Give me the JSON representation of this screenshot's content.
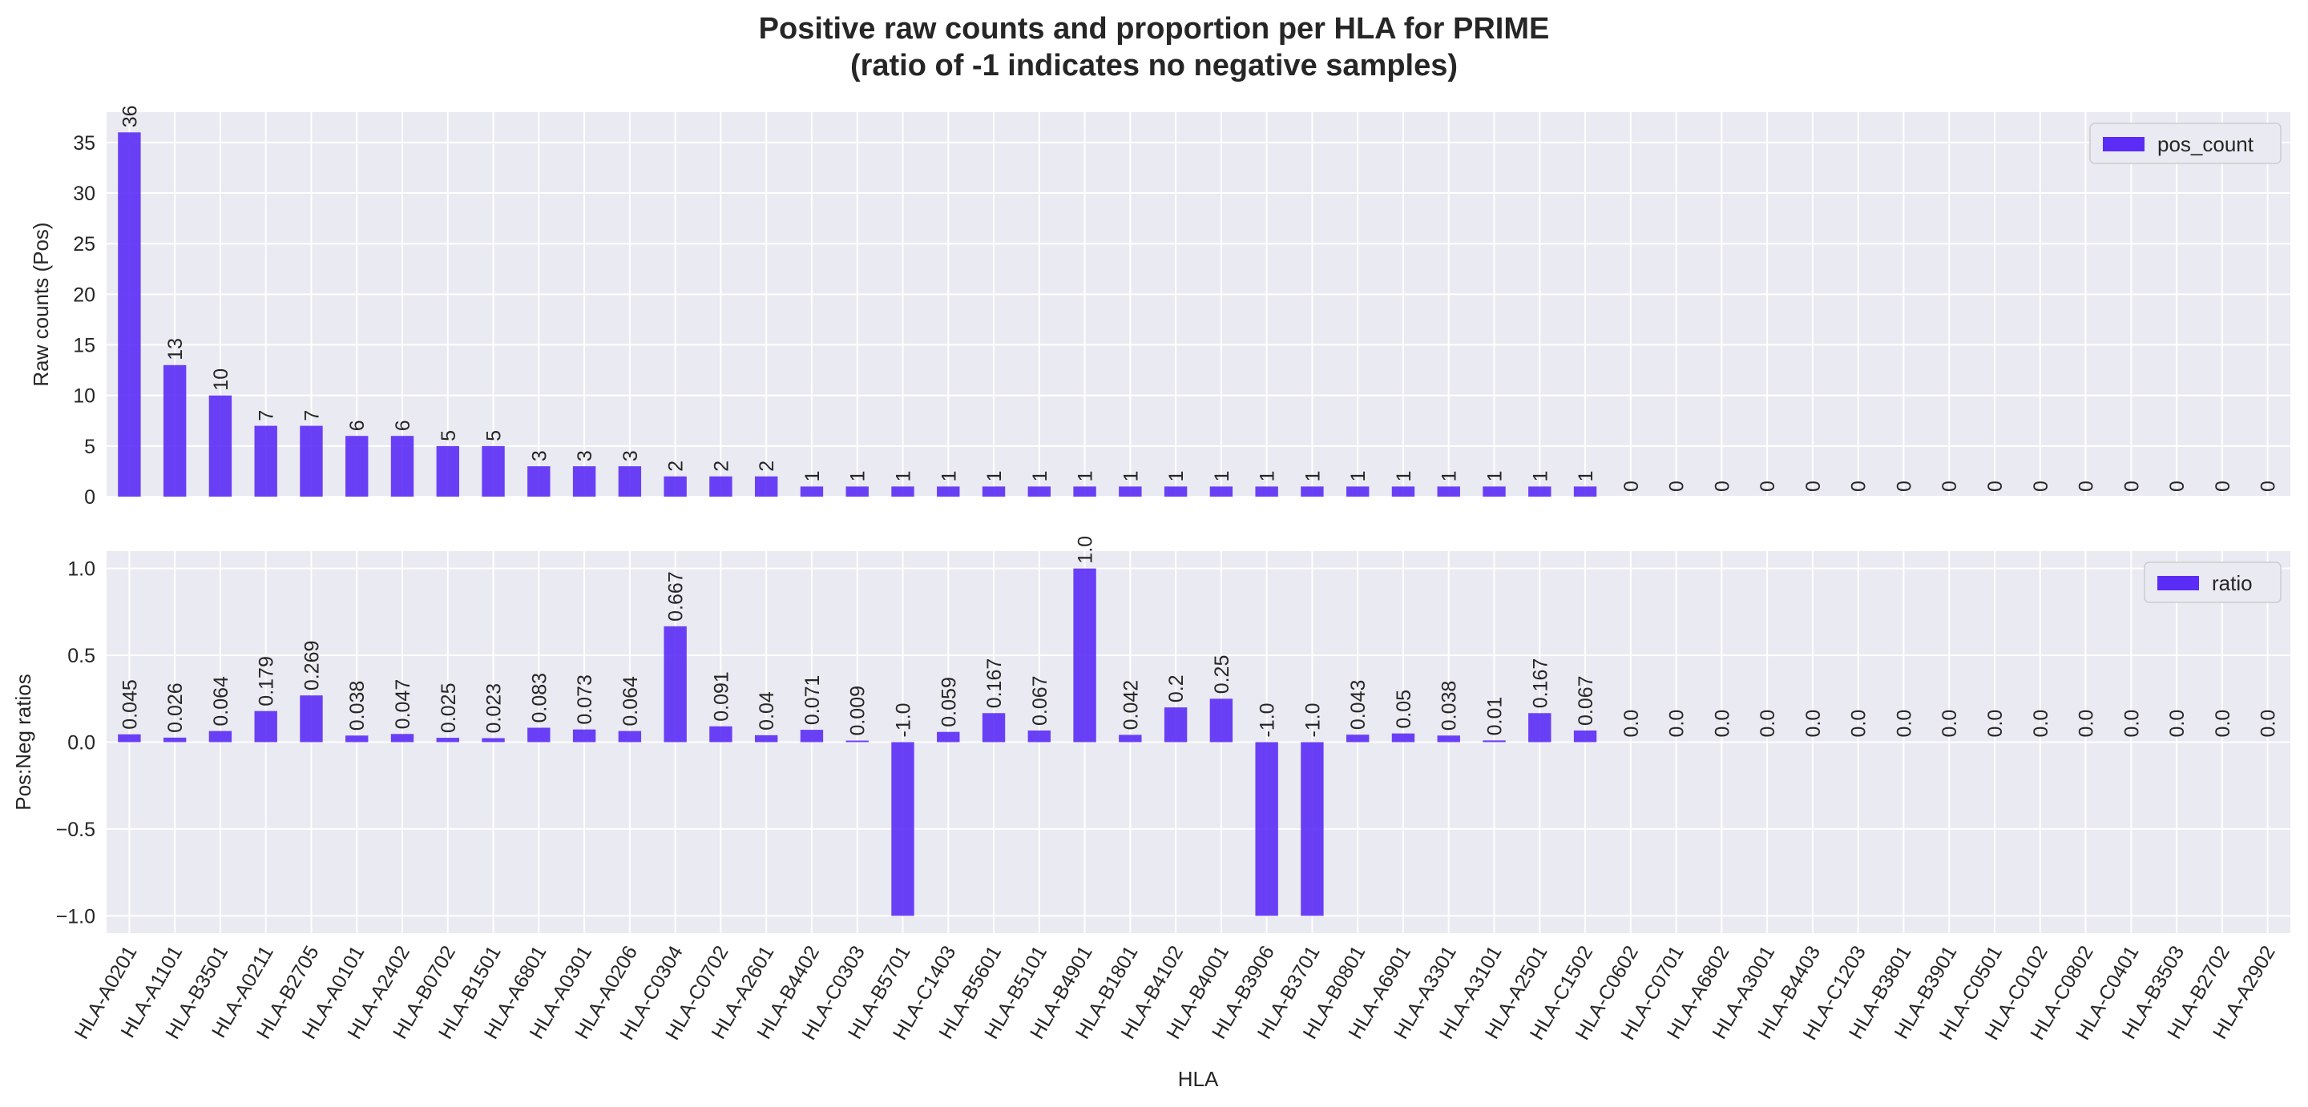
{
  "title_line1": "Positive raw counts and proportion per HLA for PRIME",
  "title_line2": "(ratio of -1 indicates no negative samples)",
  "colors": {
    "bar": "#5b2cf6",
    "panel_bg": "#eaeaf2",
    "grid": "#ffffff",
    "text": "#262626"
  },
  "chart_data": [
    {
      "type": "bar",
      "categories": [
        "HLA-A0201",
        "HLA-A1101",
        "HLA-B3501",
        "HLA-A0211",
        "HLA-B2705",
        "HLA-A0101",
        "HLA-A2402",
        "HLA-B0702",
        "HLA-B1501",
        "HLA-A6801",
        "HLA-A0301",
        "HLA-A0206",
        "HLA-C0304",
        "HLA-C0702",
        "HLA-A2601",
        "HLA-B4402",
        "HLA-C0303",
        "HLA-B5701",
        "HLA-C1403",
        "HLA-B5601",
        "HLA-B5101",
        "HLA-B4901",
        "HLA-B1801",
        "HLA-B4102",
        "HLA-B4001",
        "HLA-B3906",
        "HLA-B3701",
        "HLA-B0801",
        "HLA-A6901",
        "HLA-A3301",
        "HLA-A3101",
        "HLA-A2501",
        "HLA-C1502",
        "HLA-C0602",
        "HLA-C0701",
        "HLA-A6802",
        "HLA-A3001",
        "HLA-B4403",
        "HLA-C1203",
        "HLA-B3801",
        "HLA-B3901",
        "HLA-C0501",
        "HLA-C0102",
        "HLA-C0802",
        "HLA-C0401",
        "HLA-B3503",
        "HLA-B2702",
        "HLA-A2902"
      ],
      "series": [
        {
          "name": "pos_count",
          "values": [
            36,
            13,
            10,
            7,
            7,
            6,
            6,
            5,
            5,
            3,
            3,
            3,
            2,
            2,
            2,
            1,
            1,
            1,
            1,
            1,
            1,
            1,
            1,
            1,
            1,
            1,
            1,
            1,
            1,
            1,
            1,
            1,
            1,
            0,
            0,
            0,
            0,
            0,
            0,
            0,
            0,
            0,
            0,
            0,
            0,
            0,
            0,
            0
          ],
          "labels": [
            "36",
            "13",
            "10",
            "7",
            "7",
            "6",
            "6",
            "5",
            "5",
            "3",
            "3",
            "3",
            "2",
            "2",
            "2",
            "1",
            "1",
            "1",
            "1",
            "1",
            "1",
            "1",
            "1",
            "1",
            "1",
            "1",
            "1",
            "1",
            "1",
            "1",
            "1",
            "1",
            "1",
            "0",
            "0",
            "0",
            "0",
            "0",
            "0",
            "0",
            "0",
            "0",
            "0",
            "0",
            "0",
            "0",
            "0",
            "0"
          ]
        }
      ],
      "ylabel": "Raw counts (Pos)",
      "ylim": [
        0,
        38
      ],
      "yticks": [
        0,
        5,
        10,
        15,
        20,
        25,
        30,
        35
      ],
      "ytick_labels": [
        "0",
        "5",
        "10",
        "15",
        "20",
        "25",
        "30",
        "35"
      ],
      "grid": true,
      "legend": "top-right"
    },
    {
      "type": "bar",
      "categories": [
        "HLA-A0201",
        "HLA-A1101",
        "HLA-B3501",
        "HLA-A0211",
        "HLA-B2705",
        "HLA-A0101",
        "HLA-A2402",
        "HLA-B0702",
        "HLA-B1501",
        "HLA-A6801",
        "HLA-A0301",
        "HLA-A0206",
        "HLA-C0304",
        "HLA-C0702",
        "HLA-A2601",
        "HLA-B4402",
        "HLA-C0303",
        "HLA-B5701",
        "HLA-C1403",
        "HLA-B5601",
        "HLA-B5101",
        "HLA-B4901",
        "HLA-B1801",
        "HLA-B4102",
        "HLA-B4001",
        "HLA-B3906",
        "HLA-B3701",
        "HLA-B0801",
        "HLA-A6901",
        "HLA-A3301",
        "HLA-A3101",
        "HLA-A2501",
        "HLA-C1502",
        "HLA-C0602",
        "HLA-C0701",
        "HLA-A6802",
        "HLA-A3001",
        "HLA-B4403",
        "HLA-C1203",
        "HLA-B3801",
        "HLA-B3901",
        "HLA-C0501",
        "HLA-C0102",
        "HLA-C0802",
        "HLA-C0401",
        "HLA-B3503",
        "HLA-B2702",
        "HLA-A2902"
      ],
      "series": [
        {
          "name": "ratio",
          "values": [
            0.045,
            0.026,
            0.064,
            0.179,
            0.269,
            0.038,
            0.047,
            0.025,
            0.023,
            0.083,
            0.073,
            0.064,
            0.667,
            0.091,
            0.04,
            0.071,
            0.009,
            -1.0,
            0.059,
            0.167,
            0.067,
            1.0,
            0.042,
            0.2,
            0.25,
            -1.0,
            -1.0,
            0.043,
            0.05,
            0.038,
            0.01,
            0.167,
            0.067,
            0.0,
            0.0,
            0.0,
            0.0,
            0.0,
            0.0,
            0.0,
            0.0,
            0.0,
            0.0,
            0.0,
            0.0,
            0.0,
            0.0,
            0.0
          ],
          "labels": [
            "0.045",
            "0.026",
            "0.064",
            "0.179",
            "0.269",
            "0.038",
            "0.047",
            "0.025",
            "0.023",
            "0.083",
            "0.073",
            "0.064",
            "0.667",
            "0.091",
            "0.04",
            "0.071",
            "0.009",
            "-1.0",
            "0.059",
            "0.167",
            "0.067",
            "1.0",
            "0.042",
            "0.2",
            "0.25",
            "-1.0",
            "-1.0",
            "0.043",
            "0.05",
            "0.038",
            "0.01",
            "0.167",
            "0.067",
            "0.0",
            "0.0",
            "0.0",
            "0.0",
            "0.0",
            "0.0",
            "0.0",
            "0.0",
            "0.0",
            "0.0",
            "0.0",
            "0.0",
            "0.0",
            "0.0",
            "0.0"
          ]
        }
      ],
      "xlabel": "HLA",
      "ylabel": "Pos:Neg ratios",
      "ylim": [
        -1.1,
        1.1
      ],
      "yticks": [
        -1.0,
        -0.5,
        0.0,
        0.5,
        1.0
      ],
      "ytick_labels": [
        "−1.0",
        "−0.5",
        "0.0",
        "0.5",
        "1.0"
      ],
      "grid": true,
      "legend": "top-right"
    }
  ]
}
